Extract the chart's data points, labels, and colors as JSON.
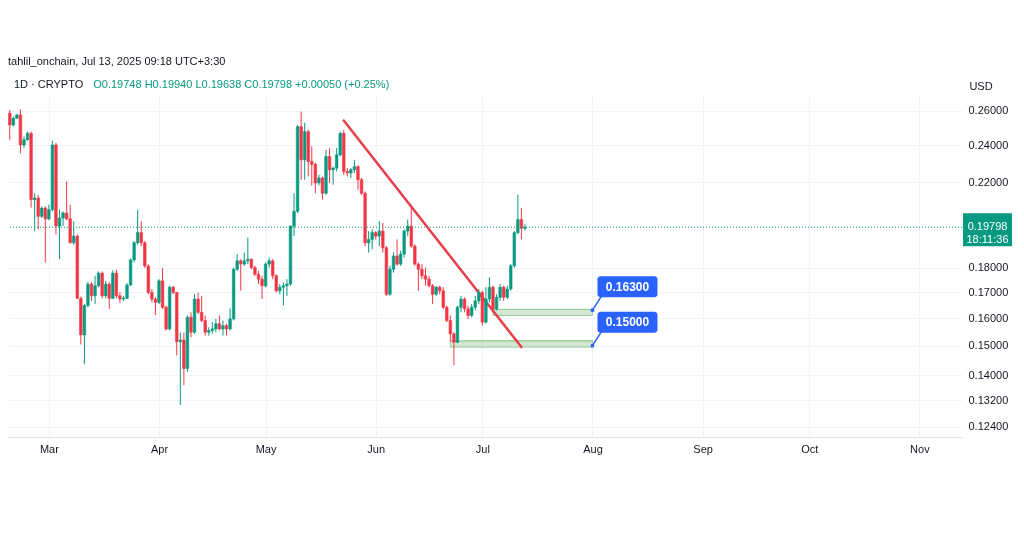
{
  "chart_data": {
    "type": "candlestick",
    "title": "1D · CRYPTO",
    "subtitle": "O0.19748 H0.19940 L0.19638 C0.19798 +0.00050 (+0.25%)",
    "ylabel": "USD",
    "annotations": [
      "tahlil_onchain, Jul 13, 2025 09:18 UTC+3:30",
      {
        "text": "0.16300",
        "x": "2025-08-01",
        "y": 0.163
      },
      {
        "text": "0.15000",
        "x": "2025-08-01",
        "y": 0.15
      }
    ],
    "x": [
      "2025-02-18",
      "2025-02-19",
      "2025-02-20",
      "2025-02-21",
      "2025-02-22",
      "2025-02-23",
      "2025-02-24",
      "2025-02-25",
      "2025-02-26",
      "2025-02-27",
      "2025-02-28",
      "2025-03-01",
      "2025-03-02",
      "2025-03-03",
      "2025-03-04",
      "2025-03-05",
      "2025-03-06",
      "2025-03-07",
      "2025-03-08",
      "2025-03-09",
      "2025-03-10",
      "2025-03-11",
      "2025-03-12",
      "2025-03-13",
      "2025-03-14",
      "2025-03-15",
      "2025-03-16",
      "2025-03-17",
      "2025-03-18",
      "2025-03-19",
      "2025-03-20",
      "2025-03-21",
      "2025-03-22",
      "2025-03-23",
      "2025-03-24",
      "2025-03-25",
      "2025-03-26",
      "2025-03-27",
      "2025-03-28",
      "2025-03-29",
      "2025-03-30",
      "2025-03-31",
      "2025-04-01",
      "2025-04-02",
      "2025-04-03",
      "2025-04-04",
      "2025-04-05",
      "2025-04-06",
      "2025-04-07",
      "2025-04-08",
      "2025-04-09",
      "2025-04-10",
      "2025-04-11",
      "2025-04-12",
      "2025-04-13",
      "2025-04-14",
      "2025-04-15",
      "2025-04-16",
      "2025-04-17",
      "2025-04-18",
      "2025-04-19",
      "2025-04-20",
      "2025-04-21",
      "2025-04-22",
      "2025-04-23",
      "2025-04-24",
      "2025-04-25",
      "2025-04-26",
      "2025-04-27",
      "2025-04-28",
      "2025-04-29",
      "2025-04-30",
      "2025-05-01",
      "2025-05-02",
      "2025-05-03",
      "2025-05-04",
      "2025-05-05",
      "2025-05-06",
      "2025-05-07",
      "2025-05-08",
      "2025-05-09",
      "2025-05-10",
      "2025-05-11",
      "2025-05-12",
      "2025-05-13",
      "2025-05-14",
      "2025-05-15",
      "2025-05-16",
      "2025-05-17",
      "2025-05-18",
      "2025-05-19",
      "2025-05-20",
      "2025-05-21",
      "2025-05-22",
      "2025-05-23",
      "2025-05-24",
      "2025-05-25",
      "2025-05-26",
      "2025-05-27",
      "2025-05-28",
      "2025-05-29",
      "2025-05-30",
      "2025-05-31",
      "2025-06-01",
      "2025-06-02",
      "2025-06-03",
      "2025-06-04",
      "2025-06-05",
      "2025-06-06",
      "2025-06-07",
      "2025-06-08",
      "2025-06-09",
      "2025-06-10",
      "2025-06-11",
      "2025-06-12",
      "2025-06-13",
      "2025-06-14",
      "2025-06-15",
      "2025-06-16",
      "2025-06-17",
      "2025-06-18",
      "2025-06-19",
      "2025-06-20",
      "2025-06-21",
      "2025-06-22",
      "2025-06-23",
      "2025-06-24",
      "2025-06-25",
      "2025-06-26",
      "2025-06-27",
      "2025-06-28",
      "2025-06-29",
      "2025-06-30",
      "2025-07-01",
      "2025-07-02",
      "2025-07-03",
      "2025-07-04",
      "2025-07-05",
      "2025-07-06",
      "2025-07-07",
      "2025-07-08",
      "2025-07-09",
      "2025-07-10",
      "2025-07-11",
      "2025-07-12",
      "2025-07-13"
    ],
    "ohlc": [
      [
        0.2586,
        0.2606,
        0.243,
        0.2516
      ],
      [
        0.2516,
        0.2566,
        0.2506,
        0.2556
      ],
      [
        0.2556,
        0.2582,
        0.255,
        0.2576
      ],
      [
        0.2576,
        0.261,
        0.2354,
        0.2401
      ],
      [
        0.2401,
        0.2449,
        0.2384,
        0.243
      ],
      [
        0.243,
        0.2477,
        0.2425,
        0.2467
      ],
      [
        0.2467,
        0.2477,
        0.2073,
        0.2112
      ],
      [
        0.2112,
        0.2144,
        0.1962,
        0.212
      ],
      [
        0.212,
        0.2136,
        0.197,
        0.2031
      ],
      [
        0.2031,
        0.2079,
        0.2023,
        0.2071
      ],
      [
        0.2071,
        0.2079,
        0.1823,
        0.2019
      ],
      [
        0.2019,
        0.2087,
        0.2013,
        0.2063
      ],
      [
        0.2063,
        0.2425,
        0.2055,
        0.2401
      ],
      [
        0.2401,
        0.2413,
        0.1947,
        0.1985
      ],
      [
        0.1985,
        0.2063,
        0.1837,
        0.2023
      ],
      [
        0.2023,
        0.2055,
        0.1985,
        0.2047
      ],
      [
        0.2047,
        0.2204,
        0.2013,
        0.2019
      ],
      [
        0.2019,
        0.2087,
        0.1906,
        0.1909
      ],
      [
        0.1909,
        0.2008,
        0.19,
        0.1939
      ],
      [
        0.1939,
        0.1947,
        0.1673,
        0.1676
      ],
      [
        0.1676,
        0.1683,
        0.1504,
        0.1538
      ],
      [
        0.1538,
        0.1654,
        0.1436,
        0.1648
      ],
      [
        0.1648,
        0.1742,
        0.1641,
        0.1733
      ],
      [
        0.1733,
        0.174,
        0.1666,
        0.1686
      ],
      [
        0.1686,
        0.1767,
        0.1654,
        0.1726
      ],
      [
        0.1726,
        0.1785,
        0.172,
        0.1778
      ],
      [
        0.1778,
        0.1785,
        0.1676,
        0.1686
      ],
      [
        0.1686,
        0.1746,
        0.1676,
        0.1733
      ],
      [
        0.1733,
        0.174,
        0.1635,
        0.1676
      ],
      [
        0.1676,
        0.179,
        0.1673,
        0.1778
      ],
      [
        0.1778,
        0.1792,
        0.1676,
        0.1686
      ],
      [
        0.1686,
        0.17,
        0.1658,
        0.1673
      ],
      [
        0.1673,
        0.1686,
        0.1666,
        0.1676
      ],
      [
        0.1676,
        0.1737,
        0.1673,
        0.1729
      ],
      [
        0.1729,
        0.184,
        0.1726,
        0.1834
      ],
      [
        0.1834,
        0.1917,
        0.1823,
        0.1909
      ],
      [
        0.1909,
        0.2063,
        0.19,
        0.1955
      ],
      [
        0.1955,
        0.2008,
        0.1894,
        0.1909
      ],
      [
        0.1909,
        0.1917,
        0.18,
        0.1808
      ],
      [
        0.1808,
        0.1815,
        0.1692,
        0.1699
      ],
      [
        0.1699,
        0.1713,
        0.166,
        0.1673
      ],
      [
        0.1673,
        0.168,
        0.1611,
        0.166
      ],
      [
        0.166,
        0.1753,
        0.1654,
        0.1746
      ],
      [
        0.1746,
        0.18,
        0.1635,
        0.1641
      ],
      [
        0.1641,
        0.1648,
        0.1554,
        0.156
      ],
      [
        0.156,
        0.1726,
        0.1554,
        0.172
      ],
      [
        0.172,
        0.1726,
        0.1692,
        0.1699
      ],
      [
        0.1699,
        0.1702,
        0.1466,
        0.1514
      ],
      [
        0.1514,
        0.1547,
        0.1305,
        0.152
      ],
      [
        0.152,
        0.1547,
        0.1367,
        0.1422
      ],
      [
        0.1422,
        0.161,
        0.1411,
        0.1603
      ],
      [
        0.1603,
        0.1622,
        0.153,
        0.1548
      ],
      [
        0.1548,
        0.1692,
        0.1542,
        0.1673
      ],
      [
        0.1673,
        0.1699,
        0.1616,
        0.1622
      ],
      [
        0.1622,
        0.1686,
        0.1585,
        0.1591
      ],
      [
        0.1591,
        0.161,
        0.1536,
        0.1548
      ],
      [
        0.1548,
        0.1566,
        0.1536,
        0.1554
      ],
      [
        0.1554,
        0.1585,
        0.1542,
        0.156
      ],
      [
        0.156,
        0.1597,
        0.1548,
        0.1579
      ],
      [
        0.1579,
        0.161,
        0.1554,
        0.156
      ],
      [
        0.156,
        0.1591,
        0.1536,
        0.1572
      ],
      [
        0.1572,
        0.1579,
        0.1536,
        0.156
      ],
      [
        0.156,
        0.1637,
        0.1554,
        0.1597
      ],
      [
        0.1597,
        0.1801,
        0.1591,
        0.1794
      ],
      [
        0.1794,
        0.1859,
        0.1787,
        0.183
      ],
      [
        0.183,
        0.1837,
        0.1706,
        0.1816
      ],
      [
        0.1816,
        0.1866,
        0.1809,
        0.183
      ],
      [
        0.183,
        0.1932,
        0.1816,
        0.1837
      ],
      [
        0.1837,
        0.184,
        0.1794,
        0.1801
      ],
      [
        0.1801,
        0.1809,
        0.1767,
        0.1773
      ],
      [
        0.1773,
        0.1787,
        0.1733,
        0.1753
      ],
      [
        0.1753,
        0.1767,
        0.1673,
        0.1726
      ],
      [
        0.1726,
        0.1823,
        0.172,
        0.1816
      ],
      [
        0.1816,
        0.1844,
        0.1801,
        0.183
      ],
      [
        0.183,
        0.1837,
        0.1753,
        0.1767
      ],
      [
        0.1767,
        0.1773,
        0.1699,
        0.1706
      ],
      [
        0.1706,
        0.1733,
        0.1692,
        0.172
      ],
      [
        0.172,
        0.174,
        0.1648,
        0.1726
      ],
      [
        0.1726,
        0.1753,
        0.1686,
        0.1733
      ],
      [
        0.1733,
        0.1988,
        0.1726,
        0.1985
      ],
      [
        0.1985,
        0.2144,
        0.1939,
        0.2055
      ],
      [
        0.2055,
        0.2516,
        0.2047,
        0.2506
      ],
      [
        0.2506,
        0.2596,
        0.2213,
        0.2319
      ],
      [
        0.2319,
        0.2529,
        0.2213,
        0.2477
      ],
      [
        0.2477,
        0.2487,
        0.223,
        0.231
      ],
      [
        0.231,
        0.2393,
        0.2183,
        0.2294
      ],
      [
        0.2294,
        0.2302,
        0.2144,
        0.2196
      ],
      [
        0.2196,
        0.2239,
        0.2183,
        0.2222
      ],
      [
        0.2222,
        0.223,
        0.2112,
        0.2144
      ],
      [
        0.2144,
        0.2374,
        0.2136,
        0.2337
      ],
      [
        0.2337,
        0.2383,
        0.2196,
        0.2265
      ],
      [
        0.2265,
        0.2282,
        0.2187,
        0.2274
      ],
      [
        0.2274,
        0.2383,
        0.2256,
        0.2346
      ],
      [
        0.2346,
        0.2477,
        0.2337,
        0.2467
      ],
      [
        0.2467,
        0.2487,
        0.2239,
        0.2256
      ],
      [
        0.2256,
        0.2274,
        0.223,
        0.2248
      ],
      [
        0.2248,
        0.2274,
        0.2222,
        0.2265
      ],
      [
        0.2265,
        0.2319,
        0.2248,
        0.2282
      ],
      [
        0.2282,
        0.229,
        0.2162,
        0.2213
      ],
      [
        0.2213,
        0.2222,
        0.2136,
        0.2144
      ],
      [
        0.2144,
        0.2153,
        0.1894,
        0.1909
      ],
      [
        0.1909,
        0.1962,
        0.1866,
        0.1924
      ],
      [
        0.1924,
        0.197,
        0.188,
        0.1955
      ],
      [
        0.1955,
        0.1962,
        0.1924,
        0.1939
      ],
      [
        0.1939,
        0.2008,
        0.1894,
        0.1962
      ],
      [
        0.1962,
        0.2,
        0.1866,
        0.1887
      ],
      [
        0.1887,
        0.1894,
        0.1686,
        0.1692
      ],
      [
        0.1692,
        0.1809,
        0.1686,
        0.1794
      ],
      [
        0.1794,
        0.1866,
        0.178,
        0.1851
      ],
      [
        0.1851,
        0.1924,
        0.1809,
        0.1816
      ],
      [
        0.1816,
        0.1873,
        0.1809,
        0.1859
      ],
      [
        0.1859,
        0.197,
        0.1844,
        0.1962
      ],
      [
        0.1962,
        0.2016,
        0.1939,
        0.1985
      ],
      [
        0.1985,
        0.2071,
        0.1887,
        0.1894
      ],
      [
        0.1894,
        0.1902,
        0.1809,
        0.1816
      ],
      [
        0.1816,
        0.1823,
        0.1706,
        0.1794
      ],
      [
        0.1794,
        0.1816,
        0.1753,
        0.1767
      ],
      [
        0.1767,
        0.1801,
        0.1726,
        0.1753
      ],
      [
        0.1753,
        0.1767,
        0.172,
        0.1726
      ],
      [
        0.1726,
        0.1733,
        0.1654,
        0.1692
      ],
      [
        0.1692,
        0.1726,
        0.1686,
        0.172
      ],
      [
        0.172,
        0.1726,
        0.1692,
        0.1706
      ],
      [
        0.1706,
        0.172,
        0.1635,
        0.1641
      ],
      [
        0.1641,
        0.1648,
        0.1585,
        0.1591
      ],
      [
        0.1591,
        0.161,
        0.1514,
        0.1542
      ],
      [
        0.1542,
        0.1548,
        0.1433,
        0.1512
      ],
      [
        0.1512,
        0.1648,
        0.151,
        0.1641
      ],
      [
        0.1641,
        0.1686,
        0.1622,
        0.1673
      ],
      [
        0.1673,
        0.168,
        0.1622,
        0.1635
      ],
      [
        0.1635,
        0.1648,
        0.1597,
        0.161
      ],
      [
        0.161,
        0.1654,
        0.1603,
        0.1641
      ],
      [
        0.1641,
        0.1686,
        0.1629,
        0.1666
      ],
      [
        0.1666,
        0.1713,
        0.1654,
        0.1699
      ],
      [
        0.1699,
        0.1706,
        0.1572,
        0.1585
      ],
      [
        0.1585,
        0.172,
        0.1579,
        0.1673
      ],
      [
        0.1673,
        0.176,
        0.166,
        0.172
      ],
      [
        0.172,
        0.1726,
        0.1622,
        0.1635
      ],
      [
        0.1635,
        0.1692,
        0.1629,
        0.168
      ],
      [
        0.168,
        0.1733,
        0.1666,
        0.172
      ],
      [
        0.172,
        0.1726,
        0.1666,
        0.168
      ],
      [
        0.168,
        0.1726,
        0.1673,
        0.1713
      ],
      [
        0.1713,
        0.1816,
        0.1706,
        0.1809
      ],
      [
        0.1809,
        0.1962,
        0.1801,
        0.1955
      ],
      [
        0.1955,
        0.2136,
        0.1947,
        0.2016
      ],
      [
        0.2016,
        0.2071,
        0.1924,
        0.1975
      ],
      [
        0.19748,
        0.1994,
        0.19638,
        0.19798
      ]
    ],
    "colors": [
      "#f23645",
      "#089981",
      "#089981",
      "#f23645",
      "#089981",
      "#089981",
      "#f23645",
      "#089981",
      "#f23645",
      "#089981",
      "#f23645",
      "#089981",
      "#089981",
      "#f23645",
      "#089981",
      "#089981",
      "#f23645",
      "#f23645",
      "#089981",
      "#f23645",
      "#f23645",
      "#089981",
      "#089981",
      "#f23645",
      "#089981",
      "#089981",
      "#f23645",
      "#089981",
      "#f23645",
      "#089981",
      "#f23645",
      "#f23645",
      "#089981",
      "#089981",
      "#089981",
      "#089981",
      "#089981",
      "#f23645",
      "#f23645",
      "#f23645",
      "#f23645",
      "#f23645",
      "#089981",
      "#f23645",
      "#f23645",
      "#089981",
      "#f23645",
      "#f23645",
      "#089981",
      "#f23645",
      "#089981",
      "#f23645",
      "#089981",
      "#f23645",
      "#f23645",
      "#f23645",
      "#089981",
      "#089981",
      "#089981",
      "#f23645",
      "#089981",
      "#f23645",
      "#089981",
      "#089981",
      "#089981",
      "#f23645",
      "#089981",
      "#089981",
      "#f23645",
      "#f23645",
      "#f23645",
      "#f23645",
      "#089981",
      "#089981",
      "#f23645",
      "#f23645",
      "#089981",
      "#089981",
      "#089981",
      "#089981",
      "#089981",
      "#089981",
      "#f23645",
      "#089981",
      "#f23645",
      "#f23645",
      "#f23645",
      "#089981",
      "#f23645",
      "#089981",
      "#f23645",
      "#089981",
      "#089981",
      "#089981",
      "#f23645",
      "#f23645",
      "#089981",
      "#089981",
      "#f23645",
      "#f23645",
      "#f23645",
      "#089981",
      "#089981",
      "#f23645",
      "#089981",
      "#f23645",
      "#f23645",
      "#089981",
      "#089981",
      "#f23645",
      "#089981",
      "#089981",
      "#089981",
      "#f23645",
      "#f23645",
      "#f23645",
      "#f23645",
      "#f23645",
      "#f23645",
      "#f23645",
      "#089981",
      "#f23645",
      "#f23645",
      "#f23645",
      "#f23645",
      "#f23645",
      "#089981",
      "#089981",
      "#f23645",
      "#f23645",
      "#089981",
      "#089981",
      "#089981",
      "#f23645",
      "#089981",
      "#089981",
      "#f23645",
      "#089981",
      "#089981",
      "#f23645",
      "#089981",
      "#089981",
      "#089981",
      "#089981",
      "#f23645",
      "#089981"
    ],
    "series": [
      {
        "type": "line",
        "x": [
          "2025-06-22",
          "2025-08-01"
        ],
        "values": [
          0.1517,
          0.1517
        ],
        "lower": [
          0.1495,
          0.1495
        ],
        "upper": [
          0.1517,
          0.1517
        ],
        "color": "#9ccc9a"
      },
      {
        "type": "line",
        "x": [
          "2025-07-04",
          "2025-08-01"
        ],
        "values": [
          0.1633,
          0.1633
        ],
        "lower": [
          0.161,
          0.161
        ],
        "upper": [
          0.1633,
          0.1633
        ],
        "color": "#9ccc9a"
      },
      {
        "type": "line",
        "x": [
          "2025-05-23",
          "2025-07-12"
        ],
        "values": [
          0.2542,
          0.1495
        ],
        "color": "#e5404a"
      }
    ],
    "ref_lines": [
      {
        "axis": "y",
        "value": 0.19798,
        "label": "0.19798\n18:11:36",
        "color": "#089981",
        "line_style": "dotted"
      }
    ],
    "xlim": [
      "2025-02-17T12:00",
      "2025-11-13"
    ],
    "ylim": [
      0.1211,
      0.2699
    ],
    "xticks": [
      {
        "value": "2025-03-01",
        "label": "Mar"
      },
      {
        "value": "2025-04-01",
        "label": "Apr"
      },
      {
        "value": "2025-05-01",
        "label": "May"
      },
      {
        "value": "2025-06-01",
        "label": "Jun"
      },
      {
        "value": "2025-07-01",
        "label": "Jul"
      },
      {
        "value": "2025-08-01",
        "label": "Aug"
      },
      {
        "value": "2025-09-01",
        "label": "Sep"
      },
      {
        "value": "2025-10-01",
        "label": "Oct"
      },
      {
        "value": "2025-11-01",
        "label": "Nov"
      }
    ],
    "yticks": [
      {
        "value": 0.124,
        "label": "0.12400"
      },
      {
        "value": 0.132,
        "label": "0.13200"
      },
      {
        "value": 0.14,
        "label": "0.14000"
      },
      {
        "value": 0.15,
        "label": "0.15000"
      },
      {
        "value": 0.16,
        "label": "0.16000"
      },
      {
        "value": 0.17,
        "label": "0.17000"
      },
      {
        "value": 0.18,
        "label": "0.18000"
      },
      {
        "value": 0.22,
        "label": "0.22000"
      },
      {
        "value": 0.24,
        "label": "0.24000"
      },
      {
        "value": 0.26,
        "label": "0.26000"
      }
    ],
    "log": "y",
    "grid": true
  }
}
